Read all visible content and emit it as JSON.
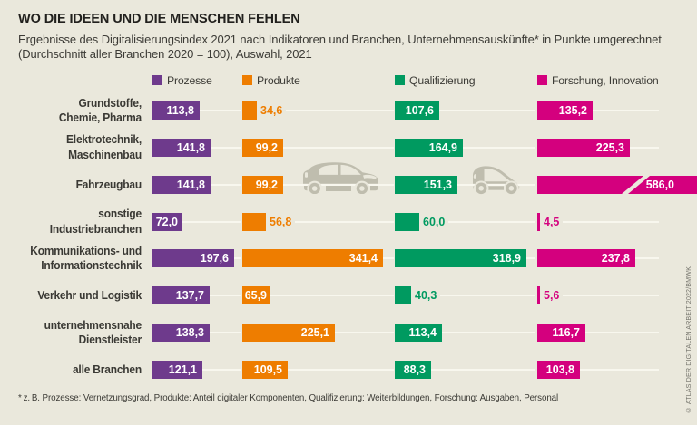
{
  "title": "WO DIE IDEEN UND DIE MENSCHEN FEHLEN",
  "subtitle_line1": "Ergebnisse des Digitalisierungsindex 2021 nach Indikatoren und Branchen, Unternehmensauskünfte* in Punkte umgerechnet",
  "subtitle_line2": "(Durchschnitt aller Branchen 2020 = 100), Auswahl, 2021",
  "footnote": "* z. B. Prozesse: Vernetzungsgrad, Produkte: Anteil digitaler Komponenten, Qualifizierung: Weiterbildungen, Forschung: Ausgaben, Personal",
  "attribution": "© ATLAS DER DIGITALEN ARBEIT 2022/BMWK",
  "colors": {
    "background": "#eae8dc",
    "track_line": "#f8f7ee",
    "prozesse": "#6e3a8c",
    "produkte": "#ee7d00",
    "qualifizierung": "#009a60",
    "forschung": "#d4007e",
    "car_gray": "#bfbdae",
    "text_dark": "#3c3b36"
  },
  "decorations": {
    "car_icons": [
      "sedan-car",
      "compact-car"
    ]
  },
  "chart_data": {
    "type": "bar",
    "orientation": "horizontal",
    "unit": "Punkte (Durchschnitt aller Branchen 2020 = 100)",
    "categories": [
      "Grundstoffe,\nChemie, Pharma",
      "Elektrotechnik,\nMaschinenbau",
      "Fahrzeugbau",
      "sonstige\nIndustriebranchen",
      "Kommunikations- und\nInformationstechnik",
      "Verkehr und Logistik",
      "unternehmensnahe\nDienstleister",
      "alle Branchen"
    ],
    "series": [
      {
        "name": "Prozesse",
        "color": "#6e3a8c",
        "values": [
          113.8,
          141.8,
          141.8,
          72.0,
          197.6,
          137.7,
          138.3,
          121.1
        ]
      },
      {
        "name": "Produkte",
        "color": "#ee7d00",
        "values": [
          34.6,
          99.2,
          99.2,
          56.8,
          341.4,
          65.9,
          225.1,
          109.5
        ]
      },
      {
        "name": "Qualifizierung",
        "color": "#009a60",
        "values": [
          107.6,
          164.9,
          151.3,
          60.0,
          318.9,
          40.3,
          113.4,
          88.3
        ]
      },
      {
        "name": "Forschung, Innovation",
        "color": "#d4007e",
        "values": [
          135.2,
          225.3,
          586.0,
          4.5,
          237.8,
          5.6,
          116.7,
          103.8
        ]
      }
    ],
    "truncated_bar": {
      "series": "Forschung, Innovation",
      "category": "Fahrzeugbau",
      "value": 586.0
    },
    "legend_position": "top",
    "grid": false
  }
}
